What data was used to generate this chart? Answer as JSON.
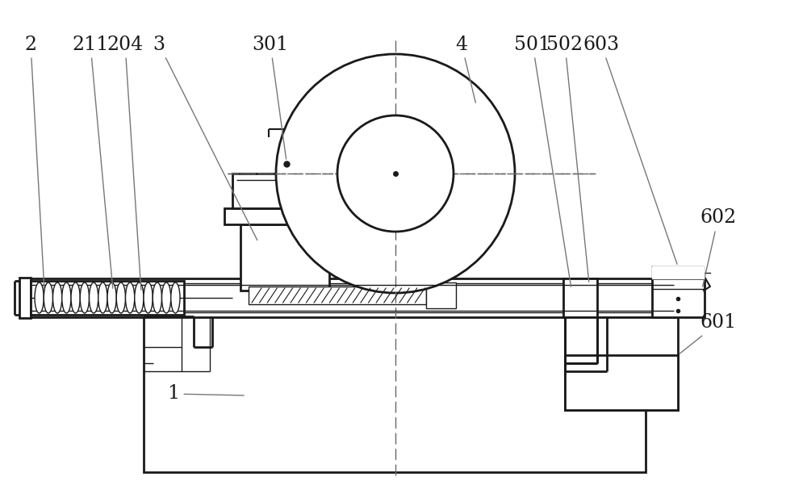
{
  "bg_color": "#ffffff",
  "line_color": "#1a1a1a",
  "label_color": "#1a1a1a",
  "dashed_color": "#666666",
  "figsize": [
    10.0,
    6.22
  ],
  "dpi": 100,
  "lw_main": 2.0,
  "lw_mid": 1.5,
  "lw_thin": 1.0
}
